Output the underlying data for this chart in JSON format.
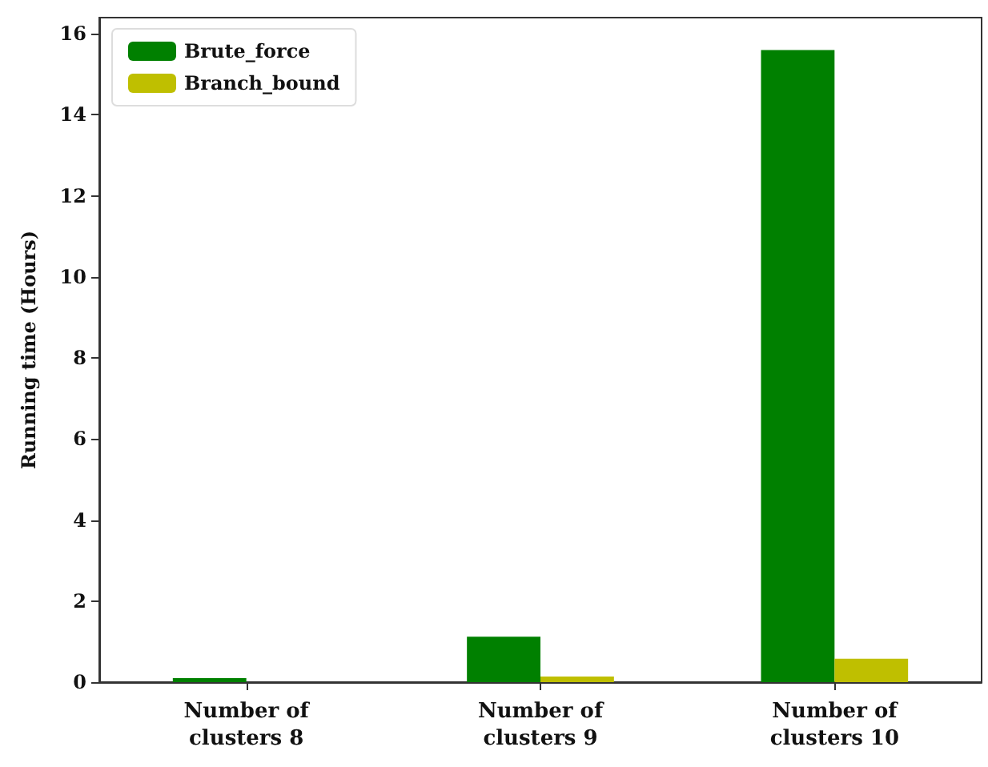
{
  "chart_data": {
    "type": "bar",
    "ylabel": "Running time (Hours)",
    "categories": [
      "Number of\nclusters 8",
      "Number of\nclusters 9",
      "Number of\nclusters 10"
    ],
    "series": [
      {
        "name": "Brute_force",
        "color": "#008000",
        "values": [
          0.1,
          1.12,
          15.6
        ]
      },
      {
        "name": "Branch_bound",
        "color": "#bfbf00",
        "values": [
          0.0,
          0.14,
          0.58
        ]
      }
    ],
    "ylim": [
      0,
      16.4
    ],
    "yticks": [
      0,
      2,
      4,
      6,
      8,
      10,
      12,
      14,
      16
    ],
    "grid": false,
    "legend": "top left"
  }
}
